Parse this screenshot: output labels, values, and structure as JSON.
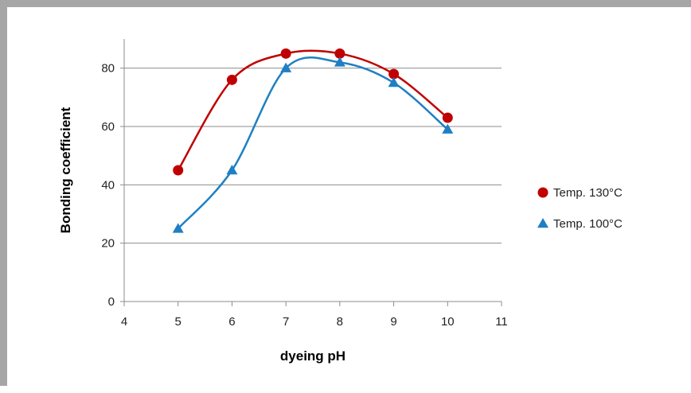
{
  "chart_data": {
    "type": "scatter",
    "xlabel": "dyeing pH",
    "ylabel": "Bonding coefficient",
    "xlim": [
      4,
      11
    ],
    "ylim": [
      0,
      90
    ],
    "xticks": [
      4,
      5,
      6,
      7,
      8,
      9,
      10,
      11
    ],
    "yticks": [
      0,
      20,
      40,
      60,
      80
    ],
    "grid": "horizontal",
    "legend_position": "right",
    "series": [
      {
        "name": "Temp. 130°C",
        "marker": "circle",
        "color": "#c00000",
        "smooth_line": true,
        "points": [
          {
            "x": 5,
            "y": 45
          },
          {
            "x": 6,
            "y": 76
          },
          {
            "x": 7,
            "y": 85
          },
          {
            "x": 8,
            "y": 85
          },
          {
            "x": 9,
            "y": 78
          },
          {
            "x": 10,
            "y": 63
          }
        ]
      },
      {
        "name": "Temp. 100°C",
        "marker": "triangle",
        "color": "#1f7fc4",
        "smooth_line": true,
        "points": [
          {
            "x": 5,
            "y": 25
          },
          {
            "x": 6,
            "y": 45
          },
          {
            "x": 7,
            "y": 80
          },
          {
            "x": 8,
            "y": 82
          },
          {
            "x": 9,
            "y": 75
          },
          {
            "x": 10,
            "y": 59
          }
        ]
      }
    ]
  }
}
